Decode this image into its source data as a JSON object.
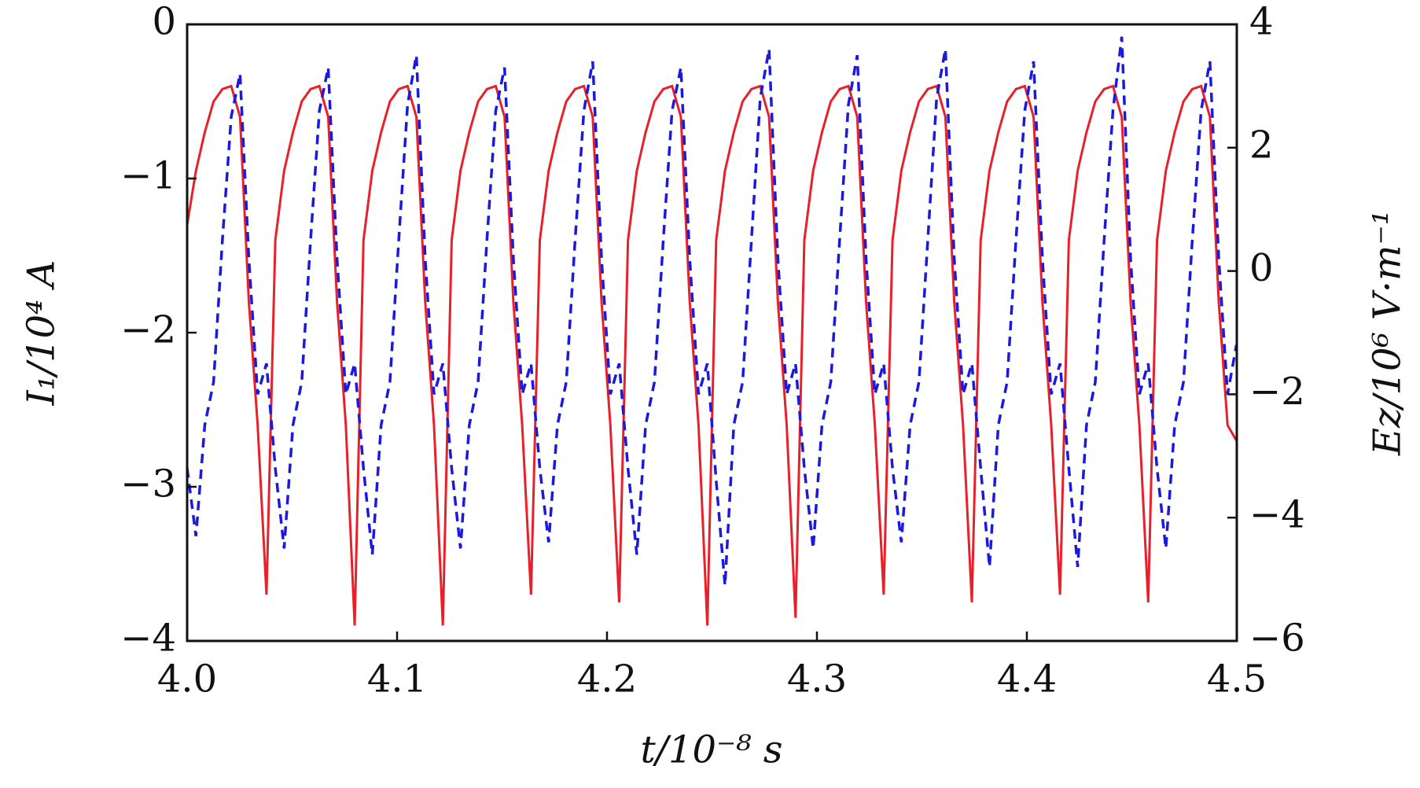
{
  "chart_data": {
    "type": "line",
    "xlabel": "t/10⁻⁸ s",
    "ylabel": "I₁/10⁴ A",
    "y2label": "Ez/10⁶ V·m⁻¹",
    "xlim": [
      4.0,
      4.5
    ],
    "xticks": [
      {
        "value": 4.0,
        "label": "4.0"
      },
      4.1,
      4.2,
      4.3,
      4.4,
      4.5
    ],
    "ylim": [
      -4,
      0
    ],
    "yticks": [
      0,
      {
        "value": -1,
        "label": "−1"
      },
      {
        "value": -2,
        "label": "−2"
      },
      {
        "value": -3,
        "label": "−3"
      },
      {
        "value": -4,
        "label": "−4"
      }
    ],
    "y2lim": [
      -6,
      4
    ],
    "y2ticks": [
      4,
      2,
      0,
      {
        "value": -2,
        "label": "−2"
      },
      {
        "value": -4,
        "label": "−4"
      },
      {
        "value": -6,
        "label": "−6"
      }
    ],
    "x": [
      4,
      4.0042,
      4.0084,
      4.0126,
      4.0168,
      4.021,
      4.0252,
      4.0294,
      4.0336,
      4.0378,
      4.042,
      4.0462,
      4.0504,
      4.0546,
      4.0588,
      4.063,
      4.0672,
      4.0714,
      4.0756,
      4.0798,
      4.084,
      4.0882,
      4.0924,
      4.0966,
      4.1008,
      4.105,
      4.1092,
      4.1134,
      4.1176,
      4.1218,
      4.126,
      4.1302,
      4.1344,
      4.1386,
      4.1428,
      4.147,
      4.1512,
      4.1554,
      4.1596,
      4.1638,
      4.168,
      4.1722,
      4.1764,
      4.1806,
      4.1848,
      4.189,
      4.1932,
      4.1974,
      4.2016,
      4.2058,
      4.21,
      4.2142,
      4.2184,
      4.2226,
      4.2268,
      4.231,
      4.2352,
      4.2394,
      4.2436,
      4.2478,
      4.252,
      4.2562,
      4.2604,
      4.2646,
      4.2688,
      4.273,
      4.2772,
      4.2814,
      4.2856,
      4.2898,
      4.294,
      4.2982,
      4.3024,
      4.3066,
      4.3108,
      4.315,
      4.3192,
      4.3234,
      4.3276,
      4.3318,
      4.336,
      4.3402,
      4.3444,
      4.3486,
      4.3528,
      4.357,
      4.3612,
      4.3654,
      4.3696,
      4.3738,
      4.378,
      4.3822,
      4.3864,
      4.3906,
      4.3948,
      4.399,
      4.4032,
      4.4074,
      4.4116,
      4.4158,
      4.42,
      4.4242,
      4.4284,
      4.4326,
      4.4368,
      4.441,
      4.4452,
      4.4494,
      4.4536,
      4.4578,
      4.462,
      4.4662,
      4.4704,
      4.4746,
      4.4788,
      4.483,
      4.4872,
      4.4914,
      4.4956,
      4.4998
    ],
    "series": [
      {
        "color": "#e8202a",
        "axis": "y",
        "dash": false,
        "values": [
          -1.3,
          -0.95,
          -0.7,
          -0.5,
          -0.42,
          -0.4,
          -0.6,
          -1.8,
          -2.6,
          -3.7,
          -1.4,
          -0.95,
          -0.7,
          -0.5,
          -0.42,
          -0.4,
          -0.6,
          -1.8,
          -2.6,
          -3.9,
          -1.4,
          -0.95,
          -0.7,
          -0.5,
          -0.42,
          -0.4,
          -0.6,
          -1.8,
          -2.6,
          -3.9,
          -1.4,
          -0.95,
          -0.7,
          -0.5,
          -0.42,
          -0.4,
          -0.6,
          -1.8,
          -2.6,
          -3.7,
          -1.4,
          -0.95,
          -0.7,
          -0.5,
          -0.42,
          -0.4,
          -0.6,
          -1.8,
          -2.6,
          -3.75,
          -1.4,
          -0.95,
          -0.7,
          -0.5,
          -0.42,
          -0.4,
          -0.6,
          -1.8,
          -2.6,
          -3.9,
          -1.4,
          -0.95,
          -0.7,
          -0.5,
          -0.42,
          -0.4,
          -0.6,
          -1.8,
          -2.6,
          -3.85,
          -1.4,
          -0.95,
          -0.7,
          -0.5,
          -0.42,
          -0.4,
          -0.6,
          -1.8,
          -2.6,
          -3.7,
          -1.4,
          -0.95,
          -0.7,
          -0.5,
          -0.42,
          -0.4,
          -0.6,
          -1.8,
          -2.6,
          -3.75,
          -1.4,
          -0.95,
          -0.7,
          -0.5,
          -0.42,
          -0.4,
          -0.6,
          -1.8,
          -2.6,
          -3.7,
          -1.4,
          -0.95,
          -0.7,
          -0.5,
          -0.42,
          -0.4,
          -0.6,
          -1.8,
          -2.6,
          -3.75,
          -1.4,
          -0.95,
          -0.7,
          -0.5,
          -0.42,
          -0.4,
          -0.6,
          -1.8,
          -2.6,
          -2.7
        ]
      },
      {
        "color": "#1a1adc",
        "axis": "y2",
        "dash": true,
        "values": [
          -3.2,
          -4.3,
          -2.5,
          -1.8,
          0.5,
          2.5,
          3.2,
          0.2,
          -2.0,
          -1.5,
          -3.2,
          -4.5,
          -2.5,
          -1.8,
          0.5,
          2.6,
          3.3,
          0.2,
          -2.0,
          -1.5,
          -3.2,
          -4.6,
          -2.5,
          -1.8,
          0.5,
          2.7,
          3.5,
          0.2,
          -2.0,
          -1.5,
          -3.2,
          -4.5,
          -2.5,
          -1.8,
          0.5,
          2.6,
          3.3,
          0.2,
          -2.0,
          -1.5,
          -3.2,
          -4.4,
          -2.5,
          -1.8,
          0.5,
          2.6,
          3.4,
          0.2,
          -2.0,
          -1.5,
          -3.2,
          -4.6,
          -2.5,
          -1.8,
          0.5,
          2.6,
          3.3,
          0.2,
          -2.0,
          -1.5,
          -3.4,
          -5.1,
          -2.5,
          -1.8,
          0.5,
          2.8,
          3.6,
          0.2,
          -2.0,
          -1.5,
          -3.2,
          -4.5,
          -2.5,
          -1.8,
          0.5,
          2.7,
          3.5,
          0.2,
          -2.0,
          -1.5,
          -3.2,
          -4.4,
          -2.5,
          -1.8,
          0.5,
          2.8,
          3.6,
          0.2,
          -2.0,
          -1.5,
          -3.2,
          -4.8,
          -2.5,
          -1.8,
          0.5,
          2.6,
          3.4,
          0.2,
          -2.0,
          -1.5,
          -3.2,
          -4.8,
          -2.5,
          -1.8,
          0.5,
          2.6,
          3.8,
          0.2,
          -2.0,
          -1.5,
          -3.2,
          -4.5,
          -2.5,
          -1.8,
          0.5,
          2.6,
          3.4,
          0.2,
          -2.0,
          -1.2
        ]
      }
    ]
  }
}
